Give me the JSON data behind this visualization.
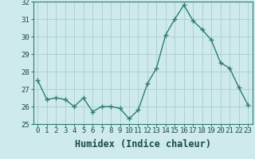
{
  "x": [
    0,
    1,
    2,
    3,
    4,
    5,
    6,
    7,
    8,
    9,
    10,
    11,
    12,
    13,
    14,
    15,
    16,
    17,
    18,
    19,
    20,
    21,
    22,
    23
  ],
  "y": [
    27.5,
    26.4,
    26.5,
    26.4,
    26.0,
    26.5,
    25.7,
    26.0,
    26.0,
    25.9,
    25.3,
    25.8,
    27.3,
    28.2,
    30.1,
    31.0,
    31.8,
    30.9,
    30.4,
    29.8,
    28.5,
    28.2,
    27.1,
    26.1
  ],
  "line_color": "#2e7d6e",
  "marker": "+",
  "marker_size": 5,
  "bg_color": "#ceeaea",
  "grid_color": "#aacece",
  "xlabel": "Humidex (Indice chaleur)",
  "ylim": [
    25,
    32
  ],
  "xlim": [
    -0.5,
    23.5
  ],
  "yticks": [
    25,
    26,
    27,
    28,
    29,
    30,
    31,
    32
  ],
  "xticks": [
    0,
    1,
    2,
    3,
    4,
    5,
    6,
    7,
    8,
    9,
    10,
    11,
    12,
    13,
    14,
    15,
    16,
    17,
    18,
    19,
    20,
    21,
    22,
    23
  ],
  "tick_fontsize": 6.5,
  "xlabel_fontsize": 8.5,
  "line_width": 1.0
}
